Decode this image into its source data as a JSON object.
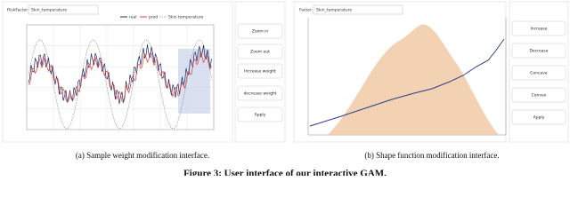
{
  "left_panel": {
    "factor_label": "RiskFactor:",
    "factor_value": "Skin_temperature",
    "legend": [
      "real",
      "pred",
      "Skin temperature"
    ],
    "buttons": [
      "Zoom in",
      "Zoom out",
      "Increase weight",
      "decrease weight",
      "Apply"
    ],
    "caption": "(a) Sample weight modification interface."
  },
  "right_panel": {
    "factor_label": "Factor:",
    "factor_value": "Skin_temperature",
    "buttons": [
      "Increase",
      "Decrease",
      "Concave",
      "Convex",
      "Apply"
    ],
    "caption": "(b) Shape function modification interface."
  },
  "figure_caption": "Figure 3: User interface of our interactive GAM."
}
